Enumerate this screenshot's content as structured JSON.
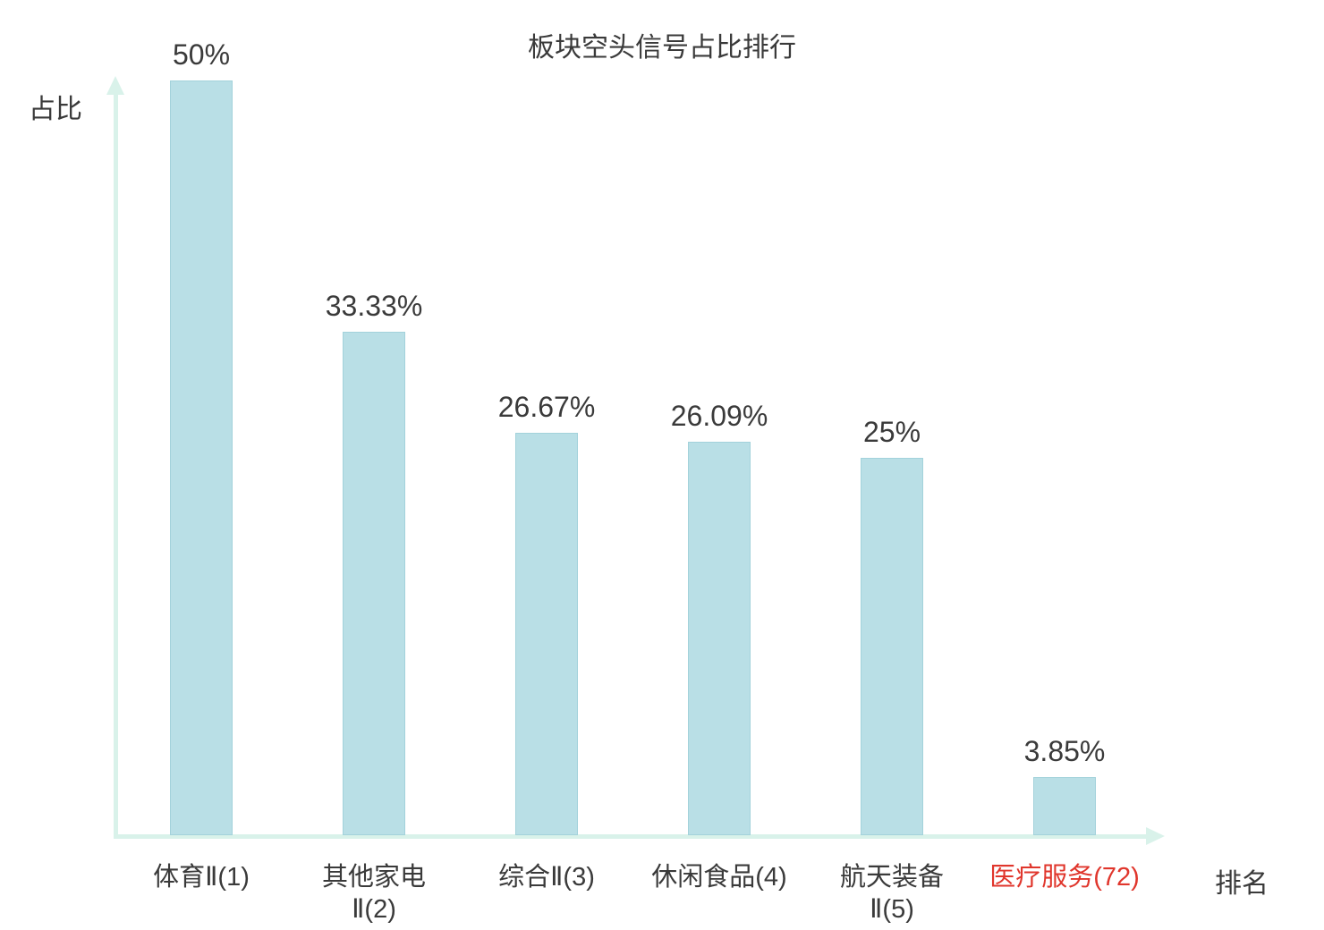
{
  "chart": {
    "title": "板块空头信号占比排行",
    "ylabel": "占比",
    "xlabel": "排名"
  },
  "chart_data": {
    "type": "bar",
    "title": "板块空头信号占比排行",
    "xlabel": "排名",
    "ylabel": "占比",
    "categories": [
      "体育Ⅱ(1)",
      "其他家电Ⅱ(2)",
      "综合Ⅱ(3)",
      "休闲食品(4)",
      "航天装备Ⅱ(5)",
      "医疗服务(72)"
    ],
    "category_lines": [
      [
        "体育Ⅱ(1)"
      ],
      [
        "其他家电",
        "Ⅱ(2)"
      ],
      [
        "综合Ⅱ(3)"
      ],
      [
        "休闲食品(4)"
      ],
      [
        "航天装备",
        "Ⅱ(5)"
      ],
      [
        "医疗服务(72)"
      ]
    ],
    "values": [
      50,
      33.33,
      26.67,
      26.09,
      25,
      3.85
    ],
    "value_labels": [
      "50%",
      "33.33%",
      "26.67%",
      "26.09%",
      "25%",
      "3.85%"
    ],
    "highlight_index": 5,
    "ylim": [
      0,
      50
    ],
    "grid": false,
    "legend": null,
    "colors": {
      "bar_fill": "#b9dfe6",
      "bar_border": "#a3d2db",
      "axis": "#d9f2ea",
      "text": "#3a3a3a",
      "highlight_text": "#e0362c"
    }
  }
}
